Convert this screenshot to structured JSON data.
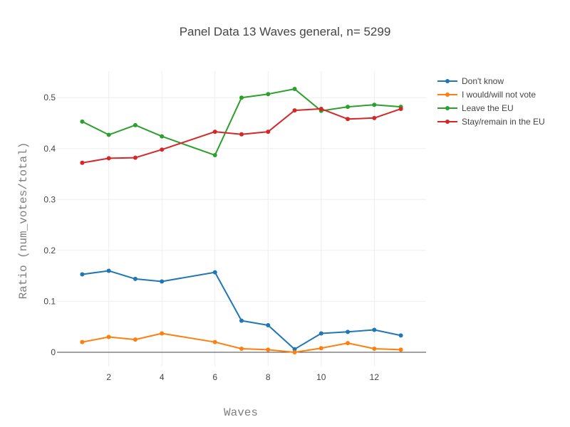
{
  "chart_data": {
    "type": "line",
    "title": "Panel Data 13 Waves general, n= 5299",
    "xlabel": "Waves",
    "ylabel": "Ratio (num_votes/total)",
    "xlim": [
      0.05,
      13.95
    ],
    "ylim": [
      -0.028,
      0.552
    ],
    "x_ticks": [
      2,
      4,
      6,
      8,
      10,
      12
    ],
    "y_ticks": [
      0,
      0.1,
      0.2,
      0.3,
      0.4,
      0.5
    ],
    "y_tick_labels": [
      "0",
      "0.1",
      "0.2",
      "0.3",
      "0.4",
      "0.5"
    ],
    "grid": true,
    "legend_position": "top-right",
    "series": [
      {
        "name": "Don't know",
        "color": "#1f77b4",
        "x": [
          1,
          2,
          3,
          4,
          6,
          7,
          8,
          9,
          10,
          11,
          12,
          13
        ],
        "y": [
          0.153,
          0.16,
          0.144,
          0.139,
          0.157,
          0.062,
          0.053,
          0.006,
          0.037,
          0.04,
          0.044,
          0.033
        ]
      },
      {
        "name": "I would/will not vote",
        "color": "#ff7f0e",
        "x": [
          1,
          2,
          3,
          4,
          6,
          7,
          8,
          9,
          10,
          11,
          12,
          13
        ],
        "y": [
          0.02,
          0.03,
          0.025,
          0.037,
          0.02,
          0.007,
          0.005,
          0.0,
          0.008,
          0.018,
          0.007,
          0.005
        ]
      },
      {
        "name": "Leave the EU",
        "color": "#2ca02c",
        "x": [
          1,
          2,
          3,
          4,
          6,
          7,
          8,
          9,
          10,
          11,
          12,
          13
        ],
        "y": [
          0.453,
          0.427,
          0.446,
          0.424,
          0.387,
          0.5,
          0.507,
          0.517,
          0.474,
          0.482,
          0.486,
          0.482
        ]
      },
      {
        "name": "Stay/remain in the EU",
        "color": "#d62728",
        "x": [
          1,
          2,
          3,
          4,
          6,
          7,
          8,
          9,
          10,
          11,
          12,
          13
        ],
        "y": [
          0.372,
          0.381,
          0.382,
          0.398,
          0.433,
          0.428,
          0.433,
          0.475,
          0.478,
          0.458,
          0.46,
          0.478
        ]
      }
    ]
  }
}
